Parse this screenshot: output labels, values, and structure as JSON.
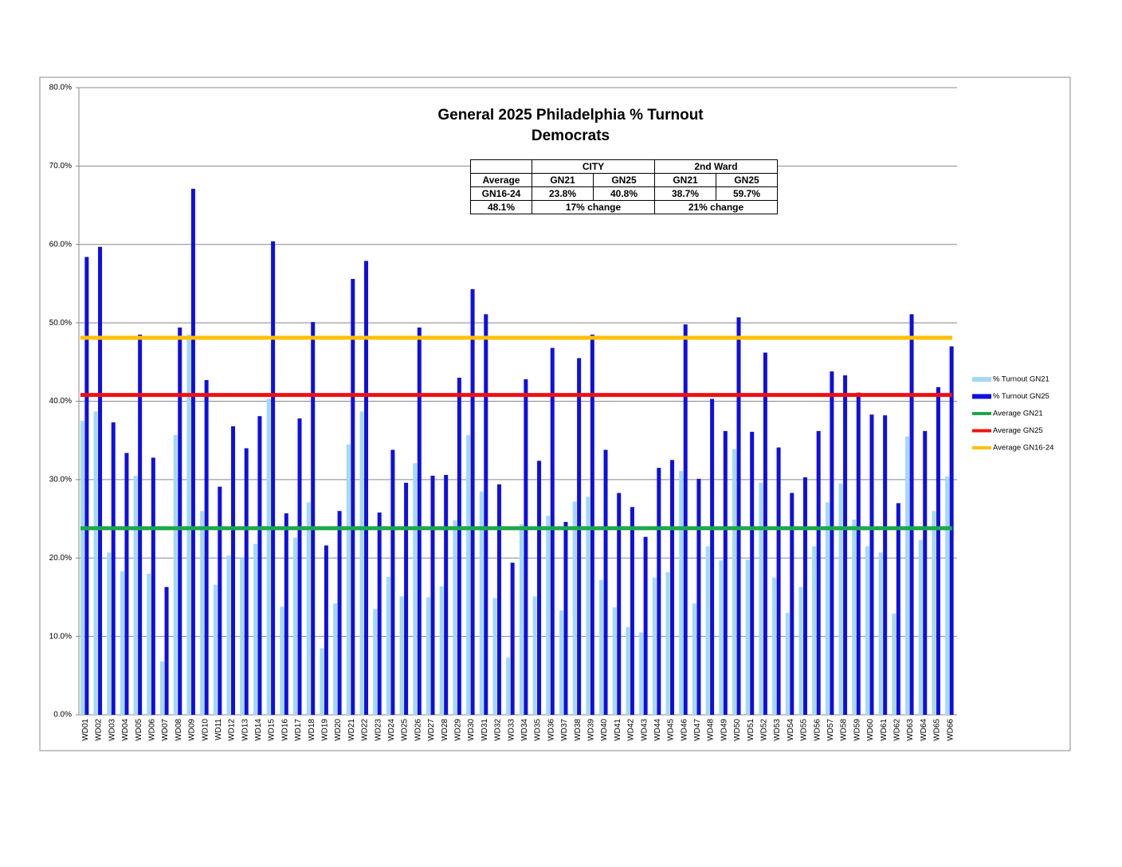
{
  "chart_data": {
    "type": "bar",
    "title": "General 2025 Philadelphia % Turnout",
    "subtitle": "Democrats",
    "categories": [
      "WD01",
      "WD02",
      "WD03",
      "WD04",
      "WD05",
      "WD06",
      "WD07",
      "WD08",
      "WD09",
      "WD10",
      "WD11",
      "WD12",
      "WD13",
      "WD14",
      "WD15",
      "WD16",
      "WD17",
      "WD18",
      "WD19",
      "WD20",
      "WD21",
      "WD22",
      "WD23",
      "WD24",
      "WD25",
      "WD26",
      "WD27",
      "WD28",
      "WD29",
      "WD30",
      "WD31",
      "WD32",
      "WD33",
      "WD34",
      "WD35",
      "WD36",
      "WD37",
      "WD38",
      "WD39",
      "WD40",
      "WD41",
      "WD42",
      "WD43",
      "WD44",
      "WD45",
      "WD46",
      "WD47",
      "WD48",
      "WD49",
      "WD50",
      "WD51",
      "WD52",
      "WD53",
      "WD54",
      "WD55",
      "WD56",
      "WD57",
      "WD58",
      "WD59",
      "WD60",
      "WD61",
      "WD62",
      "WD63",
      "WD64",
      "WD65",
      "WD66"
    ],
    "series": [
      {
        "name": "% Turnout GN21",
        "color": "#a4d9f2",
        "values": [
          37.5,
          38.7,
          20.7,
          18.3,
          30.5,
          18.0,
          6.8,
          35.7,
          48.5,
          26.0,
          16.6,
          20.3,
          20.0,
          21.8,
          40.3,
          13.8,
          22.6,
          27.1,
          8.5,
          14.2,
          34.5,
          38.7,
          13.5,
          17.6,
          15.1,
          32.1,
          15.0,
          16.4,
          24.8,
          35.7,
          28.5,
          14.9,
          7.3,
          24.3,
          15.1,
          25.4,
          13.3,
          27.2,
          27.8,
          17.2,
          13.7,
          11.2,
          10.5,
          17.5,
          18.2,
          31.1,
          14.2,
          21.5,
          19.7,
          33.9,
          19.8,
          29.6,
          17.5,
          13.0,
          16.3,
          21.5,
          27.1,
          29.5,
          24.9,
          21.5,
          20.7,
          12.9,
          35.5,
          22.3,
          26.0,
          30.4
        ]
      },
      {
        "name": "% Turnout GN25",
        "color": "#0f0fe0",
        "values": [
          58.4,
          59.7,
          37.3,
          33.4,
          48.5,
          32.8,
          16.3,
          49.4,
          67.1,
          42.7,
          29.1,
          36.8,
          34.0,
          38.1,
          60.4,
          25.7,
          37.8,
          50.1,
          21.6,
          26.0,
          55.6,
          57.9,
          25.8,
          33.8,
          29.6,
          49.4,
          30.5,
          30.6,
          43.0,
          54.3,
          51.1,
          29.4,
          19.4,
          42.8,
          32.4,
          46.8,
          24.6,
          45.5,
          48.5,
          33.8,
          28.3,
          26.5,
          22.7,
          31.5,
          32.5,
          49.8,
          30.1,
          40.3,
          36.2,
          50.7,
          36.1,
          46.2,
          34.1,
          28.3,
          30.3,
          36.2,
          43.8,
          43.3,
          41.1,
          38.3,
          38.2,
          27.0,
          51.1,
          36.2,
          41.8,
          47.0
        ]
      }
    ],
    "reference_lines": [
      {
        "name": "Average GN21",
        "color": "#1ba84a",
        "value": 23.8
      },
      {
        "name": "Average GN25",
        "color": "#ee1111",
        "value": 40.8
      },
      {
        "name": "Average GN16-24",
        "color": "#ffc000",
        "value": 48.1
      }
    ],
    "ylim": [
      0,
      80
    ],
    "yticks": [
      {
        "value": 0,
        "label": "0.0%"
      },
      {
        "value": 10,
        "label": "10.0%"
      },
      {
        "value": 20,
        "label": "20.0%"
      },
      {
        "value": 30,
        "label": "30.0%"
      },
      {
        "value": 40,
        "label": "40.0%"
      },
      {
        "value": 50,
        "label": "50.0%"
      },
      {
        "value": 60,
        "label": "60.0%"
      },
      {
        "value": 70,
        "label": "70.0%"
      },
      {
        "value": 80,
        "label": "80.0%"
      }
    ],
    "grid": true,
    "legend": "right"
  },
  "table": {
    "header": [
      "CITY",
      "2nd Ward"
    ],
    "rows": [
      [
        "Average",
        "GN21",
        "GN25",
        "GN21",
        "GN25"
      ],
      [
        "GN16-24",
        "23.8%",
        "40.8%",
        "38.7%",
        "59.7%"
      ],
      [
        "48.1%",
        "17% change",
        "21% change"
      ]
    ]
  }
}
